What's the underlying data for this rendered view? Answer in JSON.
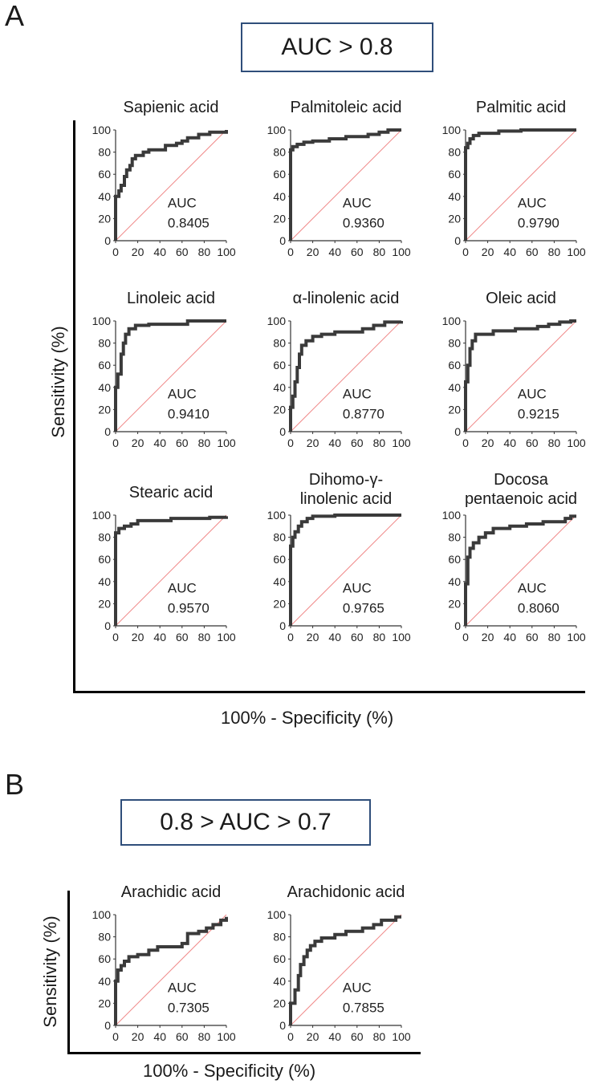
{
  "panels": [
    {
      "label": "A",
      "threshold_text": "AUC > 0.8",
      "y_axis_title": "Sensitivity  (%)",
      "x_axis_title": "100% - Specificity (%)"
    },
    {
      "label": "B",
      "threshold_text": "0.8 > AUC > 0.7",
      "y_axis_title": "Sensitivity  (%)",
      "x_axis_title": "100% - Specificity (%)"
    }
  ],
  "chart_data": [
    {
      "type": "line",
      "panel": "A",
      "title": "Sapienic acid",
      "auc_label": "AUC",
      "auc": "0.8405",
      "xlim": [
        0,
        100
      ],
      "ylim": [
        0,
        100
      ],
      "ticks": [
        "0",
        "20",
        "40",
        "60",
        "80",
        "100"
      ],
      "diagonal": true,
      "roc": [
        [
          0,
          0
        ],
        [
          0,
          40
        ],
        [
          3,
          40
        ],
        [
          3,
          45
        ],
        [
          5,
          45
        ],
        [
          5,
          50
        ],
        [
          8,
          50
        ],
        [
          8,
          58
        ],
        [
          10,
          58
        ],
        [
          10,
          64
        ],
        [
          13,
          64
        ],
        [
          13,
          68
        ],
        [
          15,
          68
        ],
        [
          15,
          74
        ],
        [
          18,
          74
        ],
        [
          18,
          77
        ],
        [
          25,
          77
        ],
        [
          25,
          80
        ],
        [
          30,
          80
        ],
        [
          30,
          82
        ],
        [
          45,
          82
        ],
        [
          45,
          86
        ],
        [
          55,
          86
        ],
        [
          55,
          88
        ],
        [
          60,
          88
        ],
        [
          60,
          90
        ],
        [
          65,
          90
        ],
        [
          65,
          93
        ],
        [
          75,
          93
        ],
        [
          75,
          96
        ],
        [
          85,
          96
        ],
        [
          85,
          98
        ],
        [
          100,
          98
        ],
        [
          100,
          100
        ]
      ]
    },
    {
      "type": "line",
      "panel": "A",
      "title": "Palmitoleic acid",
      "auc_label": "AUC",
      "auc": "0.9360",
      "xlim": [
        0,
        100
      ],
      "ylim": [
        0,
        100
      ],
      "ticks": [
        "0",
        "20",
        "40",
        "60",
        "80",
        "100"
      ],
      "diagonal": true,
      "roc": [
        [
          0,
          0
        ],
        [
          0,
          82
        ],
        [
          2,
          82
        ],
        [
          2,
          85
        ],
        [
          6,
          85
        ],
        [
          6,
          87
        ],
        [
          12,
          87
        ],
        [
          12,
          89
        ],
        [
          20,
          89
        ],
        [
          20,
          90
        ],
        [
          35,
          90
        ],
        [
          35,
          92
        ],
        [
          50,
          92
        ],
        [
          50,
          94
        ],
        [
          70,
          94
        ],
        [
          70,
          96
        ],
        [
          80,
          96
        ],
        [
          80,
          98
        ],
        [
          88,
          98
        ],
        [
          88,
          100
        ],
        [
          100,
          100
        ]
      ]
    },
    {
      "type": "line",
      "panel": "A",
      "title": "Palmitic acid",
      "auc_label": "AUC",
      "auc": "0.9790",
      "xlim": [
        0,
        100
      ],
      "ylim": [
        0,
        100
      ],
      "ticks": [
        "0",
        "20",
        "40",
        "60",
        "80",
        "100"
      ],
      "diagonal": true,
      "roc": [
        [
          0,
          0
        ],
        [
          0,
          84
        ],
        [
          2,
          84
        ],
        [
          2,
          88
        ],
        [
          4,
          88
        ],
        [
          4,
          92
        ],
        [
          7,
          92
        ],
        [
          7,
          95
        ],
        [
          12,
          95
        ],
        [
          12,
          97
        ],
        [
          30,
          97
        ],
        [
          30,
          99
        ],
        [
          50,
          99
        ],
        [
          50,
          100
        ],
        [
          100,
          100
        ]
      ]
    },
    {
      "type": "line",
      "panel": "A",
      "title": "Linoleic acid",
      "auc_label": "AUC",
      "auc": "0.9410",
      "xlim": [
        0,
        100
      ],
      "ylim": [
        0,
        100
      ],
      "ticks": [
        "0",
        "20",
        "40",
        "60",
        "80",
        "100"
      ],
      "diagonal": true,
      "roc": [
        [
          0,
          0
        ],
        [
          0,
          40
        ],
        [
          2,
          40
        ],
        [
          2,
          52
        ],
        [
          5,
          52
        ],
        [
          5,
          70
        ],
        [
          7,
          70
        ],
        [
          7,
          80
        ],
        [
          9,
          80
        ],
        [
          9,
          88
        ],
        [
          12,
          88
        ],
        [
          12,
          93
        ],
        [
          18,
          93
        ],
        [
          18,
          96
        ],
        [
          30,
          96
        ],
        [
          30,
          97
        ],
        [
          65,
          97
        ],
        [
          65,
          100
        ],
        [
          100,
          100
        ]
      ]
    },
    {
      "type": "line",
      "panel": "A",
      "title": "α-linolenic acid",
      "auc_label": "AUC",
      "auc": "0.8770",
      "xlim": [
        0,
        100
      ],
      "ylim": [
        0,
        100
      ],
      "ticks": [
        "0",
        "20",
        "40",
        "60",
        "80",
        "100"
      ],
      "diagonal": true,
      "roc": [
        [
          0,
          0
        ],
        [
          0,
          22
        ],
        [
          2,
          22
        ],
        [
          2,
          32
        ],
        [
          4,
          32
        ],
        [
          4,
          45
        ],
        [
          6,
          45
        ],
        [
          6,
          58
        ],
        [
          8,
          58
        ],
        [
          8,
          70
        ],
        [
          10,
          70
        ],
        [
          10,
          78
        ],
        [
          14,
          78
        ],
        [
          14,
          82
        ],
        [
          20,
          82
        ],
        [
          20,
          86
        ],
        [
          28,
          86
        ],
        [
          28,
          88
        ],
        [
          40,
          88
        ],
        [
          40,
          90
        ],
        [
          65,
          90
        ],
        [
          65,
          93
        ],
        [
          75,
          93
        ],
        [
          75,
          96
        ],
        [
          85,
          96
        ],
        [
          85,
          99
        ],
        [
          100,
          99
        ],
        [
          100,
          100
        ]
      ]
    },
    {
      "type": "line",
      "panel": "A",
      "title": "Oleic acid",
      "auc_label": "AUC",
      "auc": "0.9215",
      "xlim": [
        0,
        100
      ],
      "ylim": [
        0,
        100
      ],
      "ticks": [
        "0",
        "20",
        "40",
        "60",
        "80",
        "100"
      ],
      "diagonal": true,
      "roc": [
        [
          0,
          0
        ],
        [
          0,
          45
        ],
        [
          2,
          45
        ],
        [
          2,
          60
        ],
        [
          4,
          60
        ],
        [
          4,
          75
        ],
        [
          6,
          75
        ],
        [
          6,
          82
        ],
        [
          9,
          82
        ],
        [
          9,
          88
        ],
        [
          25,
          88
        ],
        [
          25,
          91
        ],
        [
          45,
          91
        ],
        [
          45,
          93
        ],
        [
          65,
          93
        ],
        [
          65,
          95
        ],
        [
          75,
          95
        ],
        [
          75,
          97
        ],
        [
          85,
          97
        ],
        [
          85,
          99
        ],
        [
          95,
          99
        ],
        [
          95,
          100
        ],
        [
          100,
          100
        ]
      ]
    },
    {
      "type": "line",
      "panel": "A",
      "title": "Stearic acid",
      "auc_label": "AUC",
      "auc": "0.9570",
      "xlim": [
        0,
        100
      ],
      "ylim": [
        0,
        100
      ],
      "ticks": [
        "0",
        "20",
        "40",
        "60",
        "80",
        "100"
      ],
      "diagonal": true,
      "roc": [
        [
          0,
          0
        ],
        [
          0,
          84
        ],
        [
          3,
          84
        ],
        [
          3,
          88
        ],
        [
          8,
          88
        ],
        [
          8,
          90
        ],
        [
          14,
          90
        ],
        [
          14,
          92
        ],
        [
          20,
          92
        ],
        [
          20,
          95
        ],
        [
          50,
          95
        ],
        [
          50,
          97
        ],
        [
          85,
          97
        ],
        [
          85,
          98
        ],
        [
          100,
          98
        ],
        [
          100,
          99
        ]
      ]
    },
    {
      "type": "line",
      "panel": "A",
      "title_lines": [
        "Dihomo-γ-",
        "linolenic acid"
      ],
      "auc_label": "AUC",
      "auc": "0.9765",
      "xlim": [
        0,
        100
      ],
      "ylim": [
        0,
        100
      ],
      "ticks": [
        "0",
        "20",
        "40",
        "60",
        "80",
        "100"
      ],
      "diagonal": true,
      "roc": [
        [
          0,
          0
        ],
        [
          0,
          72
        ],
        [
          2,
          72
        ],
        [
          2,
          80
        ],
        [
          4,
          80
        ],
        [
          4,
          85
        ],
        [
          7,
          85
        ],
        [
          7,
          90
        ],
        [
          10,
          90
        ],
        [
          10,
          94
        ],
        [
          15,
          94
        ],
        [
          15,
          97
        ],
        [
          20,
          97
        ],
        [
          20,
          99
        ],
        [
          40,
          99
        ],
        [
          40,
          100
        ],
        [
          100,
          100
        ]
      ]
    },
    {
      "type": "line",
      "panel": "A",
      "title_lines": [
        "Docosa",
        "pentaenoic acid"
      ],
      "auc_label": "AUC",
      "auc": "0.8060",
      "xlim": [
        0,
        100
      ],
      "ylim": [
        0,
        100
      ],
      "ticks": [
        "0",
        "20",
        "40",
        "60",
        "80",
        "100"
      ],
      "diagonal": true,
      "roc": [
        [
          0,
          0
        ],
        [
          0,
          38
        ],
        [
          2,
          38
        ],
        [
          2,
          62
        ],
        [
          4,
          62
        ],
        [
          4,
          70
        ],
        [
          7,
          70
        ],
        [
          7,
          75
        ],
        [
          12,
          75
        ],
        [
          12,
          80
        ],
        [
          18,
          80
        ],
        [
          18,
          84
        ],
        [
          25,
          84
        ],
        [
          25,
          88
        ],
        [
          40,
          88
        ],
        [
          40,
          90
        ],
        [
          55,
          90
        ],
        [
          55,
          92
        ],
        [
          70,
          92
        ],
        [
          70,
          94
        ],
        [
          90,
          94
        ],
        [
          90,
          97
        ],
        [
          95,
          97
        ],
        [
          95,
          99
        ],
        [
          100,
          99
        ]
      ]
    },
    {
      "type": "line",
      "panel": "B",
      "title": "Arachidic acid",
      "auc_label": "AUC",
      "auc": "0.7305",
      "xlim": [
        0,
        100
      ],
      "ylim": [
        0,
        100
      ],
      "ticks": [
        "0",
        "20",
        "40",
        "60",
        "80",
        "100"
      ],
      "diagonal": true,
      "roc": [
        [
          0,
          0
        ],
        [
          0,
          40
        ],
        [
          2,
          40
        ],
        [
          2,
          50
        ],
        [
          5,
          50
        ],
        [
          5,
          54
        ],
        [
          8,
          54
        ],
        [
          8,
          58
        ],
        [
          12,
          58
        ],
        [
          12,
          62
        ],
        [
          20,
          62
        ],
        [
          20,
          64
        ],
        [
          30,
          64
        ],
        [
          30,
          68
        ],
        [
          38,
          68
        ],
        [
          38,
          71
        ],
        [
          60,
          71
        ],
        [
          60,
          74
        ],
        [
          65,
          74
        ],
        [
          65,
          83
        ],
        [
          75,
          83
        ],
        [
          75,
          85
        ],
        [
          82,
          85
        ],
        [
          82,
          88
        ],
        [
          88,
          88
        ],
        [
          88,
          91
        ],
        [
          95,
          91
        ],
        [
          95,
          95
        ],
        [
          100,
          95
        ],
        [
          100,
          98
        ]
      ]
    },
    {
      "type": "line",
      "panel": "B",
      "title": "Arachidonic acid",
      "auc_label": "AUC",
      "auc": "0.7855",
      "xlim": [
        0,
        100
      ],
      "ylim": [
        0,
        100
      ],
      "ticks": [
        "0",
        "20",
        "40",
        "60",
        "80",
        "100"
      ],
      "diagonal": true,
      "roc": [
        [
          0,
          0
        ],
        [
          0,
          20
        ],
        [
          4,
          20
        ],
        [
          4,
          32
        ],
        [
          7,
          32
        ],
        [
          7,
          45
        ],
        [
          9,
          45
        ],
        [
          9,
          55
        ],
        [
          12,
          55
        ],
        [
          12,
          62
        ],
        [
          15,
          62
        ],
        [
          15,
          68
        ],
        [
          18,
          68
        ],
        [
          18,
          72
        ],
        [
          22,
          72
        ],
        [
          22,
          76
        ],
        [
          28,
          76
        ],
        [
          28,
          79
        ],
        [
          40,
          79
        ],
        [
          40,
          82
        ],
        [
          50,
          82
        ],
        [
          50,
          85
        ],
        [
          65,
          85
        ],
        [
          65,
          88
        ],
        [
          75,
          88
        ],
        [
          75,
          91
        ],
        [
          82,
          91
        ],
        [
          82,
          95
        ],
        [
          95,
          95
        ],
        [
          95,
          98
        ],
        [
          100,
          98
        ]
      ]
    }
  ]
}
